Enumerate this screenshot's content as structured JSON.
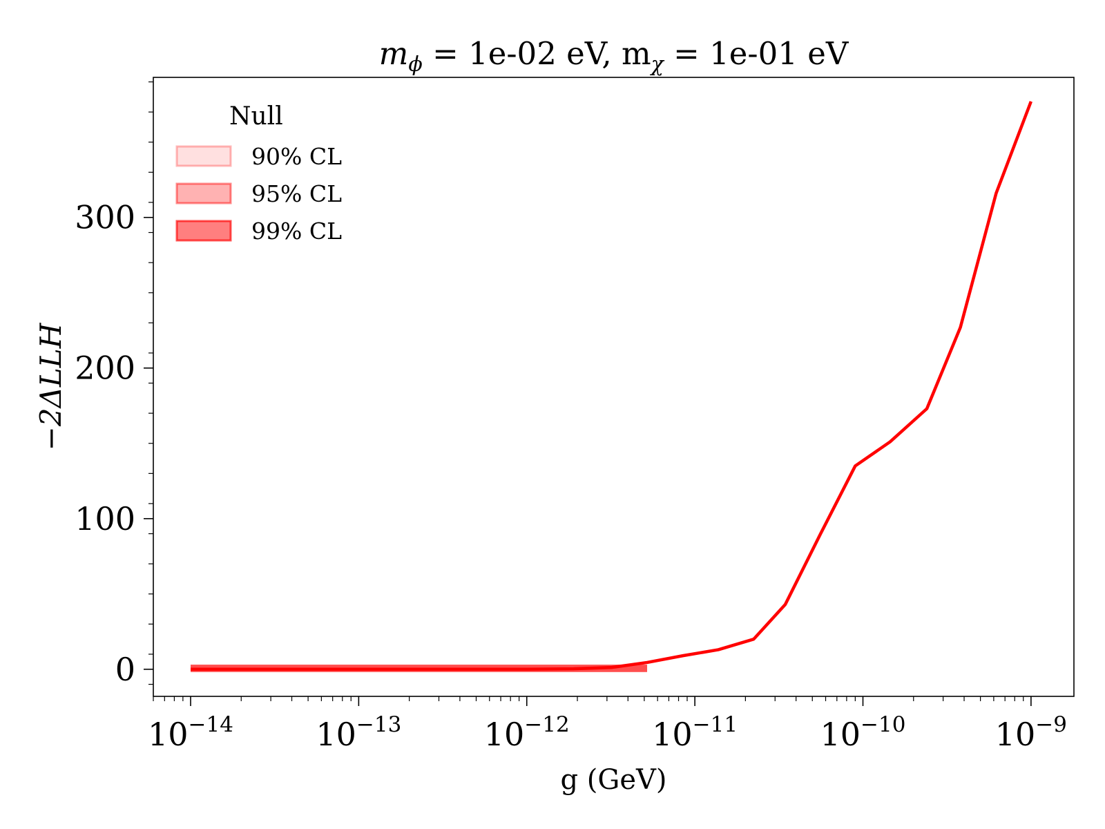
{
  "chart_data": {
    "type": "line",
    "title": {
      "prefix": "m",
      "sub1": "ϕ",
      "mid": " = 1e-02 eV, m",
      "sub2": "χ",
      "suffix": " = 1e-01 eV"
    },
    "xlabel": "g (GeV)",
    "ylabel": "−2ΔLLH",
    "x_scale": "log",
    "xlim": [
      6e-15,
      1.8e-09
    ],
    "ylim": [
      -18,
      393
    ],
    "x_ticks": [
      {
        "value": 1e-14,
        "base": "10",
        "exp": "−14"
      },
      {
        "value": 1e-13,
        "base": "10",
        "exp": "−13"
      },
      {
        "value": 1e-12,
        "base": "10",
        "exp": "−12"
      },
      {
        "value": 1e-11,
        "base": "10",
        "exp": "−11"
      },
      {
        "value": 1e-10,
        "base": "10",
        "exp": "−10"
      },
      {
        "value": 1e-09,
        "base": "10",
        "exp": "−9"
      }
    ],
    "y_ticks": [
      {
        "value": 0,
        "label": "0"
      },
      {
        "value": 100,
        "label": "100"
      },
      {
        "value": 200,
        "label": "200"
      },
      {
        "value": 300,
        "label": "300"
      }
    ],
    "legend": {
      "title": "Null",
      "position": "top-left",
      "entries": [
        {
          "label": "90% CL",
          "color": "#ff0000",
          "alpha": 0.12
        },
        {
          "label": "95% CL",
          "color": "#ff0000",
          "alpha": 0.3
        },
        {
          "label": "99% CL",
          "color": "#ff0000",
          "alpha": 0.5
        }
      ]
    },
    "bands": [
      {
        "name": "90% CL",
        "x": [
          1e-14,
          5.2e-12
        ],
        "y": [
          0,
          1.2
        ],
        "alpha": 0.12
      },
      {
        "name": "95% CL",
        "x": [
          1e-14,
          5.2e-12
        ],
        "y": [
          0,
          1.2
        ],
        "alpha": 0.3
      },
      {
        "name": "99% CL",
        "x": [
          1e-14,
          5.2e-12
        ],
        "y": [
          0,
          1.2
        ],
        "alpha": 0.5
      }
    ],
    "series": [
      {
        "color": "#ff0000",
        "x": [
          1e-14,
          1.6e-14,
          2.5e-14,
          4e-14,
          6.3e-14,
          1e-13,
          1.6e-13,
          2.5e-13,
          4e-13,
          6.3e-13,
          1e-12,
          1.9e-12,
          3.2e-12,
          5.2e-12,
          8.5e-12,
          1.38e-11,
          2.24e-11,
          3.45e-11,
          5.6e-11,
          9e-11,
          1.45e-10,
          2.4e-10,
          3.8e-10,
          6.2e-10,
          1e-09
        ],
        "y": [
          0,
          0,
          0,
          0,
          0,
          0,
          0,
          0,
          0,
          0,
          0,
          0.3,
          1.2,
          4.5,
          9,
          13,
          20,
          43,
          90,
          135,
          151,
          173,
          227,
          316,
          377
        ]
      }
    ]
  }
}
